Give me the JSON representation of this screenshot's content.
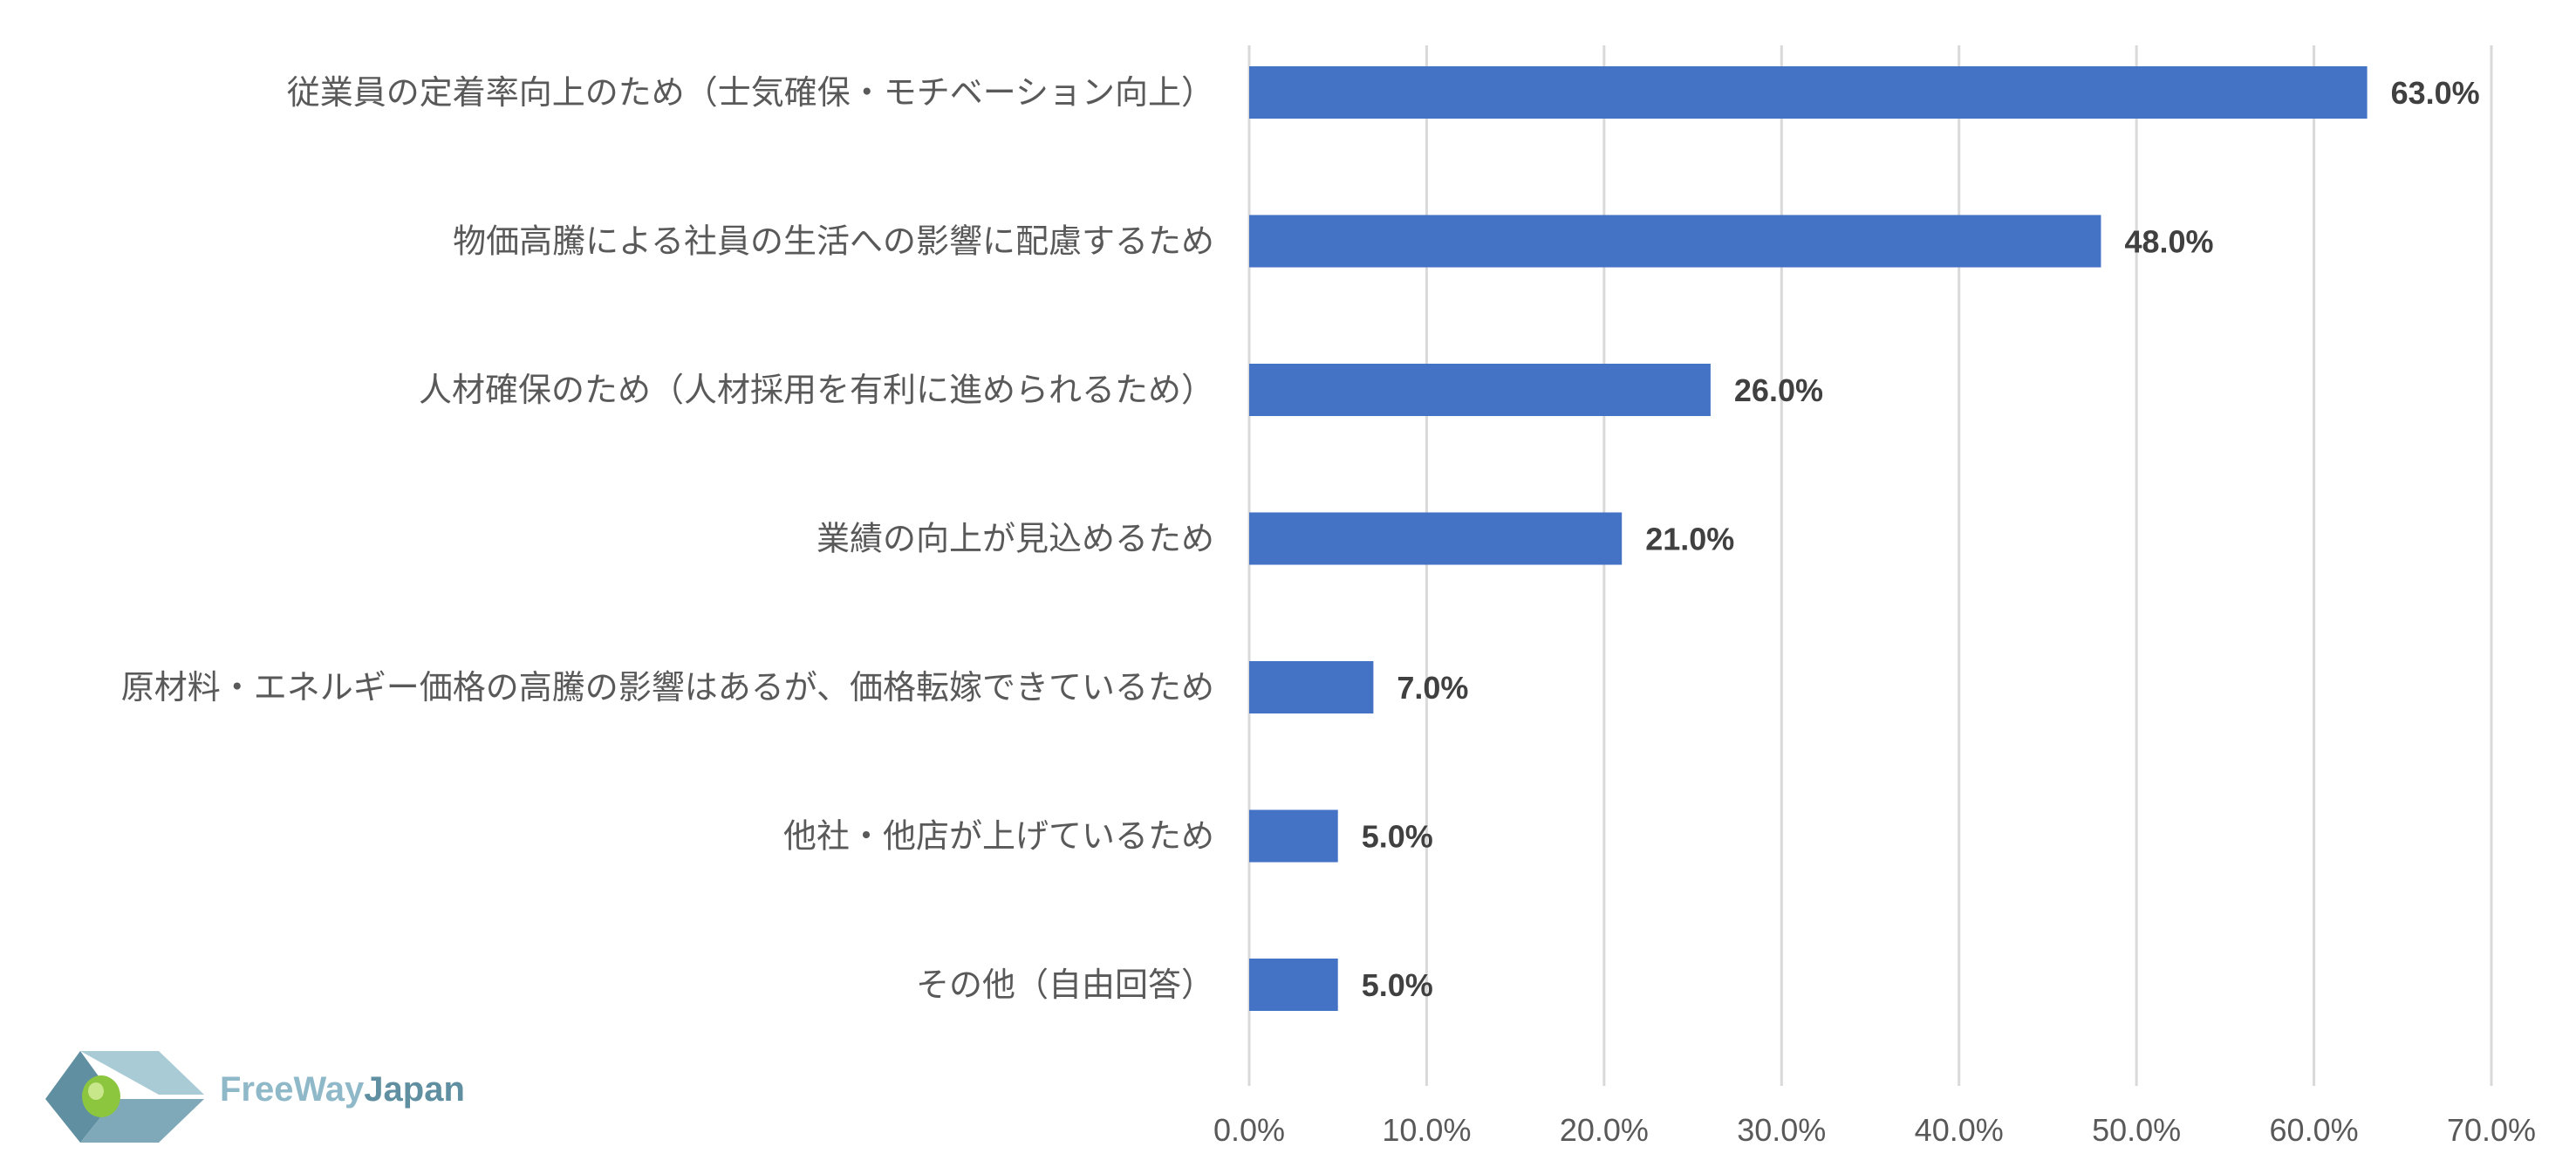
{
  "chart_data": {
    "type": "bar",
    "orientation": "horizontal",
    "categories": [
      "従業員の定着率向上のため（士気確保・モチベーション向上）",
      "物価高騰による社員の生活への影響に配慮するため",
      "人材確保のため（人材採用を有利に進められるため）",
      "業績の向上が見込めるため",
      "原材料・エネルギー価格の高騰の影響はあるが、価格転嫁できているため",
      "他社・他店が上げているため",
      "その他（自由回答）"
    ],
    "values": [
      63.0,
      48.0,
      26.0,
      21.0,
      7.0,
      5.0,
      5.0
    ],
    "value_labels": [
      "63.0%",
      "48.0%",
      "26.0%",
      "21.0%",
      "7.0%",
      "5.0%",
      "5.0%"
    ],
    "xlim": [
      0,
      70
    ],
    "xticks": [
      "0.0%",
      "10.0%",
      "20.0%",
      "30.0%",
      "40.0%",
      "50.0%",
      "60.0%",
      "70.0%"
    ],
    "grid": true,
    "bar_color": "#4472c4",
    "grid_color": "#d9d9d9"
  },
  "logo": {
    "part1": "FreeWay",
    "part2": "Japan",
    "colors": {
      "primary": "#5f8fa0",
      "secondary": "#8fb9c8",
      "accent": "#8cc63f"
    }
  }
}
